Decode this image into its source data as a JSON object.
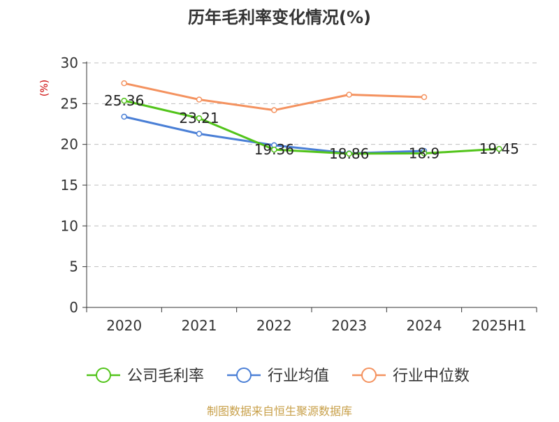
{
  "chart_data": {
    "type": "line",
    "title": "历年毛利率变化情况(%)",
    "ylabel": "(%)",
    "xlabel": "",
    "categories": [
      "2020",
      "2021",
      "2022",
      "2023",
      "2024",
      "2025H1"
    ],
    "ylim": [
      0,
      30
    ],
    "yticks": [
      0,
      5,
      10,
      15,
      20,
      25,
      30
    ],
    "grid": true,
    "legend_position": "bottom",
    "series": [
      {
        "name": "公司毛利率",
        "color": "#52c41a",
        "values": [
          25.36,
          23.21,
          19.36,
          18.86,
          18.9,
          19.45
        ],
        "labels": [
          "25.36",
          "23.21",
          "19.36",
          "18.86",
          "18.9",
          "19.45"
        ]
      },
      {
        "name": "行业均值",
        "color": "#4a7fd6",
        "values": [
          23.4,
          21.3,
          19.9,
          18.9,
          19.2,
          null
        ]
      },
      {
        "name": "行业中位数",
        "color": "#f4925f",
        "values": [
          27.5,
          25.5,
          24.2,
          26.1,
          25.8,
          null
        ]
      }
    ]
  },
  "source": "制图数据来自恒生聚源数据库"
}
